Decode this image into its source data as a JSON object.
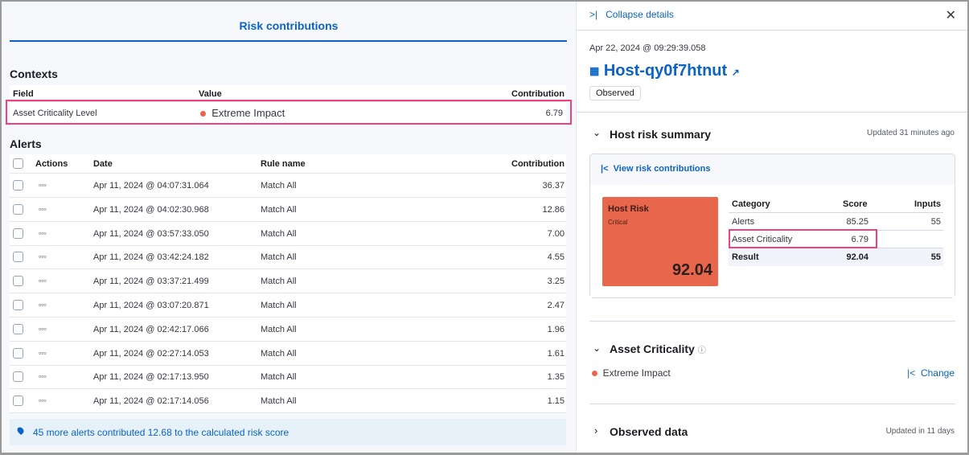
{
  "left": {
    "tab_title": "Risk contributions",
    "contexts": {
      "title": "Contexts",
      "headers": [
        "Field",
        "Value",
        "Contribution"
      ],
      "row": {
        "field": "Asset Criticality Level",
        "value": "Extreme Impact",
        "contribution": "6.79"
      }
    },
    "alerts": {
      "title": "Alerts",
      "headers": [
        "Actions",
        "Date",
        "Rule name",
        "Contribution"
      ],
      "rows": [
        {
          "date": "Apr 11, 2024 @ 04:07:31.064",
          "rule": "Match All",
          "contribution": "36.37"
        },
        {
          "date": "Apr 11, 2024 @ 04:02:30.968",
          "rule": "Match All",
          "contribution": "12.86"
        },
        {
          "date": "Apr 11, 2024 @ 03:57:33.050",
          "rule": "Match All",
          "contribution": "7.00"
        },
        {
          "date": "Apr 11, 2024 @ 03:42:24.182",
          "rule": "Match All",
          "contribution": "4.55"
        },
        {
          "date": "Apr 11, 2024 @ 03:37:21.499",
          "rule": "Match All",
          "contribution": "3.25"
        },
        {
          "date": "Apr 11, 2024 @ 03:07:20.871",
          "rule": "Match All",
          "contribution": "2.47"
        },
        {
          "date": "Apr 11, 2024 @ 02:42:17.066",
          "rule": "Match All",
          "contribution": "1.96"
        },
        {
          "date": "Apr 11, 2024 @ 02:27:14.053",
          "rule": "Match All",
          "contribution": "1.61"
        },
        {
          "date": "Apr 11, 2024 @ 02:17:13.950",
          "rule": "Match All",
          "contribution": "1.35"
        },
        {
          "date": "Apr 11, 2024 @ 02:17:14.056",
          "rule": "Match All",
          "contribution": "1.15"
        }
      ],
      "callout": "45 more alerts contributed 12.68 to the calculated risk score"
    }
  },
  "right": {
    "collapse": "Collapse details",
    "timestamp": "Apr 22, 2024 @ 09:29:39.058",
    "host": "Host-qy0f7htnut",
    "badge": "Observed",
    "risk": {
      "title": "Host risk summary",
      "updated": "Updated 31 minutes ago",
      "view_link": "View risk contributions",
      "card": {
        "title": "Host Risk",
        "level": "Critical",
        "score": "92.04",
        "color": "#e7664c"
      },
      "headers": [
        "Category",
        "Score",
        "Inputs"
      ],
      "rows": [
        {
          "category": "Alerts",
          "score": "85.25",
          "inputs": "55"
        },
        {
          "category": "Asset Criticality",
          "score": "6.79",
          "inputs": ""
        }
      ],
      "result": {
        "category": "Result",
        "score": "92.04",
        "inputs": "55"
      }
    },
    "asset": {
      "title": "Asset Criticality",
      "value": "Extreme Impact",
      "change": "Change"
    },
    "observed": {
      "title": "Observed data",
      "updated": "Updated in 11 days"
    }
  }
}
